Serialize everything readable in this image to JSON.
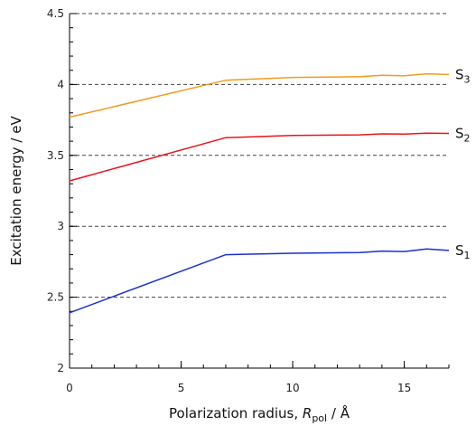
{
  "chart_data": {
    "type": "line",
    "xlabel": {
      "prefix": "Polarization radius, ",
      "var": "R",
      "sub": "pol",
      "suffix": " / Å"
    },
    "ylabel": "Excitation energy / eV",
    "xlim": [
      0,
      17
    ],
    "ylim": [
      2,
      4.5
    ],
    "x_ticks": [
      0,
      5,
      10,
      15
    ],
    "x_minor_step": 1,
    "y_ticks": [
      2,
      2.5,
      3,
      3.5,
      4,
      4.5
    ],
    "y_minor_step": 0.1,
    "grid": "horizontal dashed at 2.5, 3, 3.5, 4, 4.5",
    "series": [
      {
        "name": "S3",
        "label_main": "S",
        "label_sub": "3",
        "color": "#f39b1c",
        "x": [
          0,
          7,
          10,
          13,
          14,
          15,
          16,
          17
        ],
        "y": [
          3.77,
          4.03,
          4.05,
          4.055,
          4.065,
          4.062,
          4.075,
          4.07
        ]
      },
      {
        "name": "S2",
        "label_main": "S",
        "label_sub": "2",
        "color": "#e8141c",
        "x": [
          0,
          7,
          10,
          13,
          14,
          15,
          16,
          17
        ],
        "y": [
          3.32,
          3.625,
          3.64,
          3.645,
          3.652,
          3.65,
          3.657,
          3.655
        ]
      },
      {
        "name": "S1",
        "label_main": "S",
        "label_sub": "1",
        "color": "#1a2fd0",
        "x": [
          0,
          7,
          10,
          13,
          14,
          15,
          16,
          17
        ],
        "y": [
          2.39,
          2.8,
          2.81,
          2.815,
          2.825,
          2.822,
          2.84,
          2.83
        ]
      }
    ]
  }
}
